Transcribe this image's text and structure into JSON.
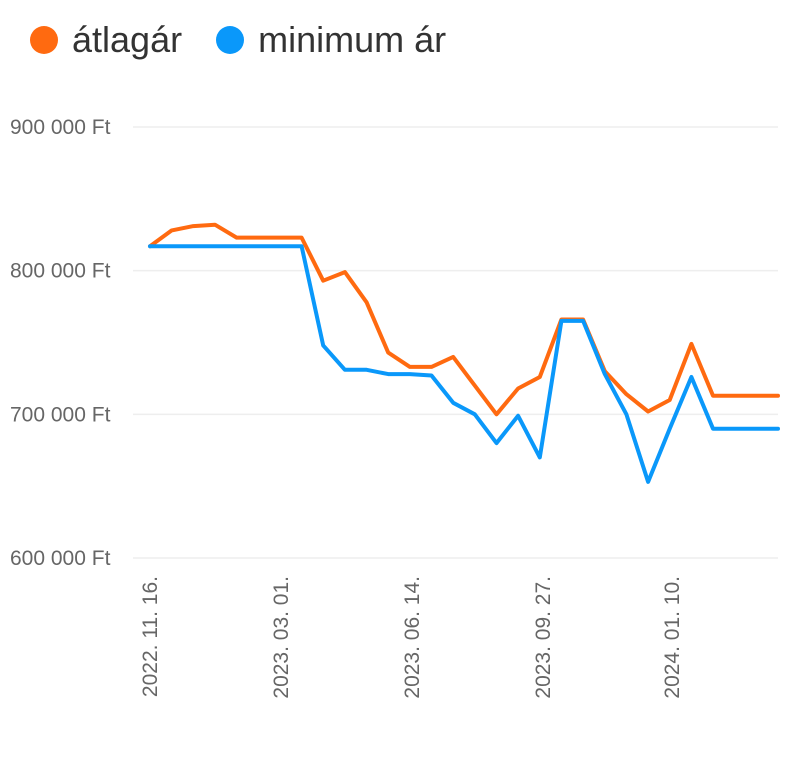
{
  "colors": {
    "avg": "#ff6a10",
    "min": "#0a98fa",
    "grid": "#eeeeee",
    "text": "#666666"
  },
  "legend": [
    {
      "label": "átlagár",
      "color": "#ff6a10",
      "icon": "orange-dot-icon"
    },
    {
      "label": "minimum ár",
      "color": "#0a98fa",
      "icon": "blue-dot-icon"
    }
  ],
  "chart_data": {
    "type": "line",
    "ylim": [
      600000,
      900000
    ],
    "y_ticks": [
      {
        "value": 900000,
        "label": "900 000 Ft"
      },
      {
        "value": 800000,
        "label": "800 000 Ft"
      },
      {
        "value": 700000,
        "label": "700 000 Ft"
      },
      {
        "value": 600000,
        "label": "600 000 Ft"
      }
    ],
    "x_ticks": [
      "2022. 11. 16.",
      "2023. 03. 01.",
      "2023. 06. 14.",
      "2023. 09. 27.",
      "2024. 01. 10."
    ],
    "legend_position": "top-left",
    "grid": true,
    "series": [
      {
        "name": "átlagár",
        "values": [
          817000,
          828000,
          831000,
          832000,
          823000,
          823000,
          823000,
          823000,
          793000,
          799000,
          778000,
          743000,
          733000,
          733000,
          740000,
          720000,
          700000,
          718000,
          726000,
          766000,
          766000,
          730000,
          714000,
          702000,
          710000,
          749000,
          713000,
          713000,
          713000,
          713000
        ]
      },
      {
        "name": "minimum ár",
        "values": [
          817000,
          817000,
          817000,
          817000,
          817000,
          817000,
          817000,
          817000,
          748000,
          731000,
          731000,
          728000,
          728000,
          727000,
          708000,
          700000,
          680000,
          699000,
          670000,
          765000,
          765000,
          728000,
          700000,
          653000,
          690000,
          726000,
          690000,
          690000,
          690000,
          690000
        ]
      }
    ]
  }
}
